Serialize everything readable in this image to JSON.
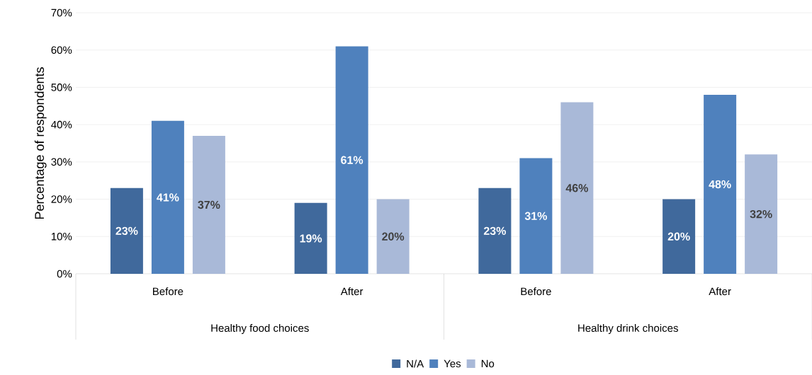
{
  "chart_data": {
    "type": "bar",
    "ylabel": "Percentage of respondents",
    "categories": [
      "Before",
      "After",
      "Before",
      "After"
    ],
    "series": [
      {
        "name": "N/A",
        "color": "#40699c",
        "values": [
          23,
          19,
          23,
          20
        ],
        "value_labels": [
          "23%",
          "19%",
          "23%",
          "20%"
        ]
      },
      {
        "name": "Yes",
        "color": "#4f81bd",
        "values": [
          41,
          61,
          31,
          48
        ],
        "value_labels": [
          "41%",
          "61%",
          "31%",
          "48%"
        ]
      },
      {
        "name": "No",
        "color": "#a9b9d8",
        "values": [
          37,
          20,
          46,
          32
        ],
        "value_labels": [
          "37%",
          "20%",
          "46%",
          "32%"
        ]
      }
    ],
    "ylim": [
      0,
      70
    ],
    "yticks": [
      {
        "value": 0,
        "label": "0%"
      },
      {
        "value": 10,
        "label": "10%"
      },
      {
        "value": 20,
        "label": "20%"
      },
      {
        "value": 30,
        "label": "30%"
      },
      {
        "value": 40,
        "label": "40%"
      },
      {
        "value": 50,
        "label": "50%"
      },
      {
        "value": 60,
        "label": "60%"
      },
      {
        "value": 70,
        "label": "70%"
      }
    ],
    "annotations": [
      "Healthy food choices",
      "Healthy drink choices"
    ],
    "grid": "y",
    "legend": "bottom"
  }
}
